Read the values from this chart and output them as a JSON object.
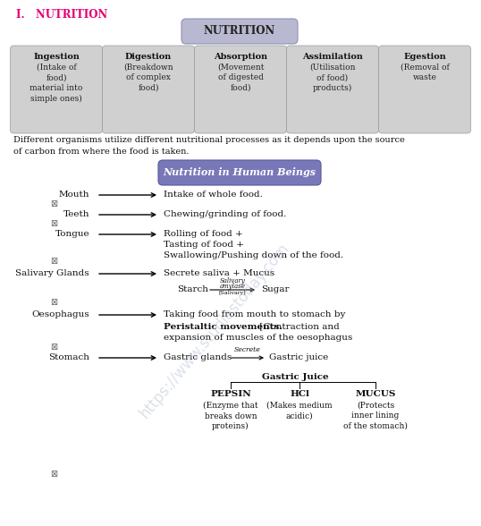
{
  "title_number": "I.   NUTRITION",
  "title_color": "#e60073",
  "bg_color": "#ffffff",
  "nutrition_box_text": "NUTRITION",
  "nutrition_box_color": "#b8b8d0",
  "sub_boxes": [
    {
      "title": "Ingestion",
      "body": "(Intake of\nfood)\nmaterial into\nsimple ones)"
    },
    {
      "title": "Digestion",
      "body": "(Breakdown\nof complex\nfood)"
    },
    {
      "title": "Absorption",
      "body": "(Movement\nof digested\nfood)"
    },
    {
      "title": "Assimilation",
      "body": "(Utilisation\nof food)\nproducts)"
    },
    {
      "title": "Egestion",
      "body": "(Removal of\nwaste"
    }
  ],
  "sub_box_color": "#d0d0d0",
  "paragraph": "Different organisms utilize different nutritional processes as it depends upon the source\nof carbon from where the food is taken.",
  "human_nutrition_box": "Nutrition in Human Beings",
  "human_nutrition_box_color": "#7878b8",
  "watermark": "https://www.studiestoday.com",
  "watermark_color": "#a8b4cc",
  "gastric_juice_components": [
    "PEPSIN",
    "HCl",
    "MUCUS"
  ],
  "gastric_juice_desc": [
    "(Enzyme that\nbreaks down\nproteins)",
    "(Makes medium\nacidic)",
    "(Protects\ninner lining\nof the stomach)"
  ]
}
